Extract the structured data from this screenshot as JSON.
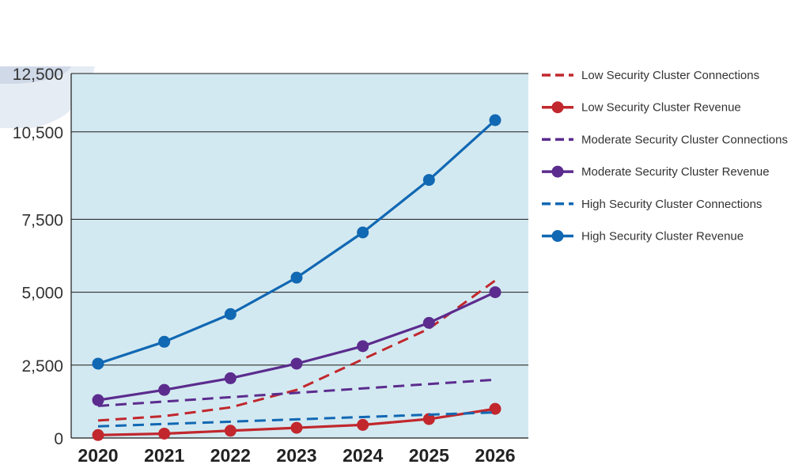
{
  "chart_data": {
    "type": "line",
    "x": [
      "2020",
      "2021",
      "2022",
      "2023",
      "2024",
      "2025",
      "2026"
    ],
    "ylim": [
      0,
      12500
    ],
    "yticks": [
      0,
      2500,
      5000,
      7500,
      10500,
      12500
    ],
    "ytick_labels": [
      "0",
      "2,500",
      "5,000",
      "7,500",
      "10,500",
      "12,500"
    ],
    "grid": "horizontal",
    "legend_position": "right",
    "series": [
      {
        "name": "Low Security Cluster Connections",
        "style": "dashed",
        "markers": false,
        "color": "#c1272d",
        "values": [
          600,
          750,
          1050,
          1650,
          2700,
          3750,
          5400
        ]
      },
      {
        "name": "Low Security Cluster Revenue",
        "style": "solid",
        "markers": true,
        "color": "#c1272d",
        "values": [
          100,
          150,
          250,
          350,
          450,
          650,
          1000
        ]
      },
      {
        "name": "Moderate Security Cluster Connections",
        "style": "dashed",
        "markers": false,
        "color": "#5b2c8e",
        "values": [
          1100,
          1250,
          1400,
          1550,
          1700,
          1850,
          2000
        ]
      },
      {
        "name": "Moderate Security Cluster Revenue",
        "style": "solid",
        "markers": true,
        "color": "#5b2c8e",
        "values": [
          1300,
          1650,
          2050,
          2550,
          3150,
          3950,
          5000
        ]
      },
      {
        "name": "High Security Cluster Connections",
        "style": "dashed",
        "markers": false,
        "color": "#1168b3",
        "values": [
          400,
          480,
          560,
          640,
          720,
          800,
          880
        ]
      },
      {
        "name": "High Security Cluster Revenue",
        "style": "solid",
        "markers": true,
        "color": "#1168b3",
        "values": [
          2550,
          3300,
          4250,
          5500,
          7050,
          8850,
          10900
        ]
      }
    ]
  }
}
